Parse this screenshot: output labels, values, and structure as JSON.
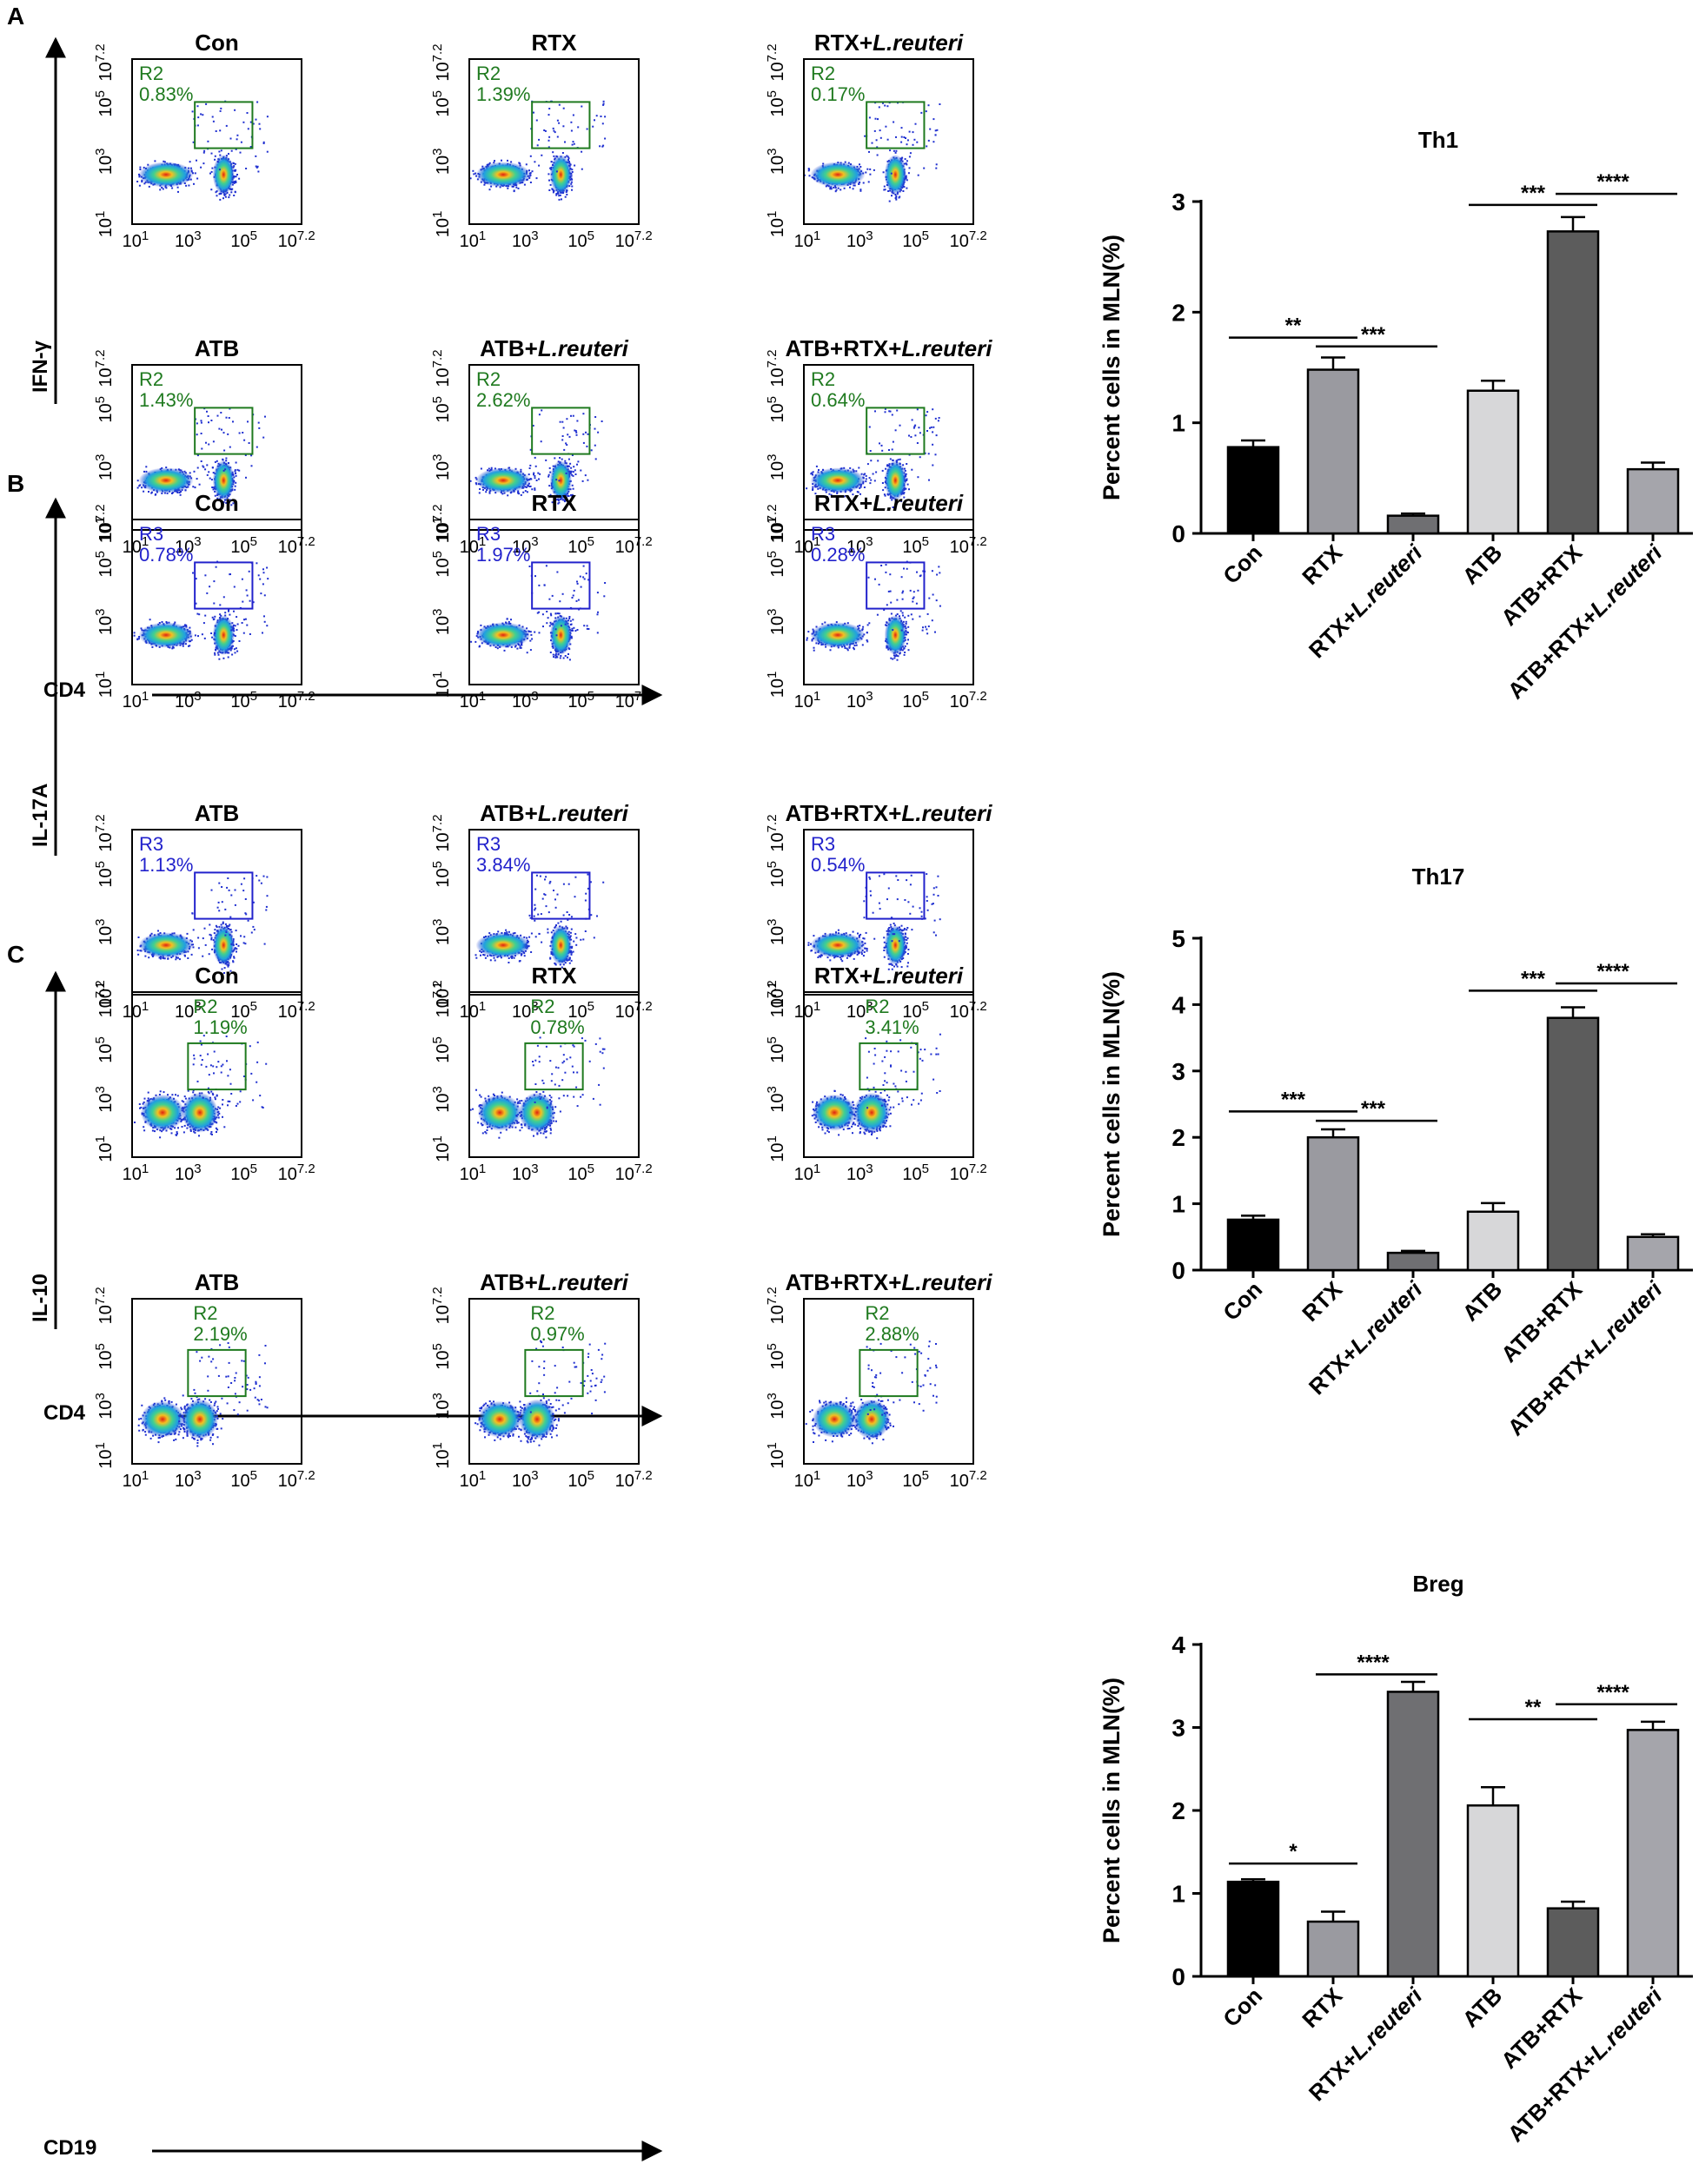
{
  "figure": {
    "panels": [
      {
        "letter": "A",
        "y_marker": "IFN-γ",
        "x_marker": "CD4",
        "gate_color": "#1f7a1f",
        "gate_label": "R2",
        "gate_position": "upper-left",
        "flow_plots": [
          {
            "title": "Con",
            "italic_part": "",
            "pct": "0.83%"
          },
          {
            "title": "RTX",
            "italic_part": "",
            "pct": "1.39%"
          },
          {
            "title": "RTX+",
            "italic_part": "L.reuteri",
            "pct": "0.17%"
          },
          {
            "title": "ATB",
            "italic_part": "",
            "pct": "1.43%"
          },
          {
            "title": "ATB+",
            "italic_part": "L.reuteri",
            "pct": "2.62%"
          },
          {
            "title": "ATB+RTX+",
            "italic_part": "L.reuteri",
            "pct": "0.64%"
          }
        ],
        "axis_ticks": {
          "y": [
            "10",
            "1",
            "10",
            "3",
            "10",
            "5",
            "10",
            "7.2"
          ],
          "x": [
            "10",
            "1",
            "10",
            "3",
            "10",
            "5",
            "10",
            "7.2"
          ]
        }
      },
      {
        "letter": "B",
        "y_marker": "IL-17A",
        "x_marker": "CD4",
        "gate_color": "#2222cc",
        "gate_label": "R3",
        "gate_position": "upper-left",
        "flow_plots": [
          {
            "title": "Con",
            "italic_part": "",
            "pct": "0.78%"
          },
          {
            "title": "RTX",
            "italic_part": "",
            "pct": "1.97%"
          },
          {
            "title": "RTX+",
            "italic_part": "L.reuteri",
            "pct": "0.28%"
          },
          {
            "title": "ATB",
            "italic_part": "",
            "pct": "1.13%"
          },
          {
            "title": "ATB+",
            "italic_part": "L.reuteri",
            "pct": "3.84%"
          },
          {
            "title": "ATB+RTX+",
            "italic_part": "L.reuteri",
            "pct": "0.54%"
          }
        ],
        "axis_ticks": {
          "y": [
            "10",
            "1",
            "10",
            "3",
            "10",
            "5",
            "10",
            "7.2"
          ],
          "x": [
            "10",
            "1",
            "10",
            "3",
            "10",
            "5",
            "10",
            "7.2"
          ]
        }
      },
      {
        "letter": "C",
        "y_marker": "IL-10",
        "x_marker": "CD19",
        "gate_color": "#1f7a1f",
        "gate_label": "R2",
        "gate_position": "above-gate",
        "flow_plots": [
          {
            "title": "Con",
            "italic_part": "",
            "pct": "1.19%"
          },
          {
            "title": "RTX",
            "italic_part": "",
            "pct": "0.78%"
          },
          {
            "title": "RTX+",
            "italic_part": "L.reuteri",
            "pct": "3.41%"
          },
          {
            "title": "ATB",
            "italic_part": "",
            "pct": "2.19%"
          },
          {
            "title": "ATB+",
            "italic_part": "L.reuteri",
            "pct": "0.97%"
          },
          {
            "title": "ATB+RTX+",
            "italic_part": "L.reuteri",
            "pct": "2.88%"
          }
        ],
        "axis_ticks": {
          "y": [
            "10",
            "1",
            "10",
            "3",
            "10",
            "5",
            "10",
            "7.2"
          ],
          "x": [
            "10",
            "1",
            "10",
            "3",
            "10",
            "5",
            "10",
            "7.2"
          ]
        }
      }
    ]
  },
  "chart_data": [
    {
      "type": "bar",
      "title": "Th1",
      "ylabel": "Percent cells in MLN(%)",
      "xlabel": "",
      "ylim": [
        0,
        3
      ],
      "yticks": [
        0,
        1,
        2,
        3
      ],
      "categories": [
        {
          "text": "Con",
          "italic": ""
        },
        {
          "text": "RTX",
          "italic": ""
        },
        {
          "text": "RTX+",
          "italic": "L.reuteri"
        },
        {
          "text": "ATB",
          "italic": ""
        },
        {
          "text": "ATB+RTX",
          "italic": ""
        },
        {
          "text": "ATB+RTX+",
          "italic": "L.reuteri"
        }
      ],
      "values": [
        0.78,
        1.48,
        0.16,
        1.29,
        2.73,
        0.58
      ],
      "errors": [
        0.06,
        0.11,
        0.02,
        0.09,
        0.13,
        0.06
      ],
      "bar_colors": [
        "#000000",
        "#9a9aa0",
        "#6f6f72",
        "#d7d7d9",
        "#5c5c5c",
        "#a5a5ab"
      ],
      "significance": [
        {
          "from": 0,
          "to": 1,
          "label": "**",
          "y": 1.77
        },
        {
          "from": 1,
          "to": 2,
          "label": "***",
          "y": 1.69
        },
        {
          "from": 3,
          "to": 4,
          "label": "***",
          "y": 2.97
        },
        {
          "from": 4,
          "to": 5,
          "label": "****",
          "y": 3.07
        }
      ]
    },
    {
      "type": "bar",
      "title": "Th17",
      "ylabel": "Percent cells in MLN(%)",
      "xlabel": "",
      "ylim": [
        0,
        5
      ],
      "yticks": [
        0,
        1,
        2,
        3,
        4,
        5
      ],
      "categories": [
        {
          "text": "Con",
          "italic": ""
        },
        {
          "text": "RTX",
          "italic": ""
        },
        {
          "text": "RTX+",
          "italic": "L.reuteri"
        },
        {
          "text": "ATB",
          "italic": ""
        },
        {
          "text": "ATB+RTX",
          "italic": ""
        },
        {
          "text": "ATB+RTX+",
          "italic": "L.reuteri"
        }
      ],
      "values": [
        0.76,
        2.0,
        0.26,
        0.88,
        3.8,
        0.5
      ],
      "errors": [
        0.06,
        0.12,
        0.03,
        0.13,
        0.16,
        0.04
      ],
      "bar_colors": [
        "#000000",
        "#9a9aa0",
        "#6f6f72",
        "#d7d7d9",
        "#5c5c5c",
        "#a5a5ab"
      ],
      "significance": [
        {
          "from": 0,
          "to": 1,
          "label": "***",
          "y": 2.39
        },
        {
          "from": 1,
          "to": 2,
          "label": "***",
          "y": 2.25
        },
        {
          "from": 3,
          "to": 4,
          "label": "***",
          "y": 4.21
        },
        {
          "from": 4,
          "to": 5,
          "label": "****",
          "y": 4.32
        }
      ]
    },
    {
      "type": "bar",
      "title": "Breg",
      "ylabel": "Percent cells in MLN(%)",
      "xlabel": "",
      "ylim": [
        0,
        4
      ],
      "yticks": [
        0,
        1,
        2,
        3,
        4
      ],
      "categories": [
        {
          "text": "Con",
          "italic": ""
        },
        {
          "text": "RTX",
          "italic": ""
        },
        {
          "text": "RTX+",
          "italic": "L.reuteri"
        },
        {
          "text": "ATB",
          "italic": ""
        },
        {
          "text": "ATB+RTX",
          "italic": ""
        },
        {
          "text": "ATB+RTX+",
          "italic": "L.reuteri"
        }
      ],
      "values": [
        1.14,
        0.66,
        3.43,
        2.06,
        0.82,
        2.97
      ],
      "errors": [
        0.03,
        0.12,
        0.12,
        0.22,
        0.08,
        0.1
      ],
      "bar_colors": [
        "#000000",
        "#9a9aa0",
        "#6f6f72",
        "#d7d7d9",
        "#5c5c5c",
        "#a5a5ab"
      ],
      "significance": [
        {
          "from": 0,
          "to": 1,
          "label": "*",
          "y": 1.36
        },
        {
          "from": 1,
          "to": 2,
          "label": "****",
          "y": 3.64
        },
        {
          "from": 3,
          "to": 4,
          "label": "**",
          "y": 3.1
        },
        {
          "from": 4,
          "to": 5,
          "label": "****",
          "y": 3.28
        }
      ]
    }
  ]
}
